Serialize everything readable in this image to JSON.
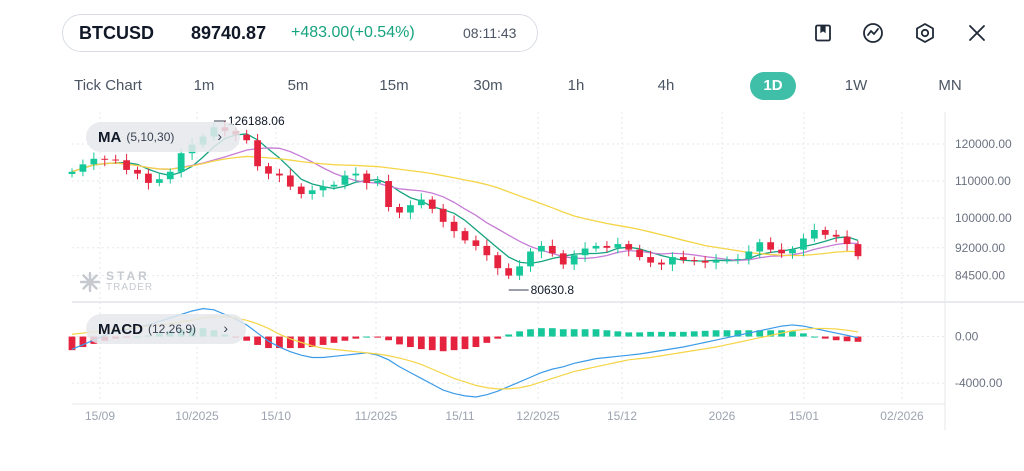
{
  "ticker": {
    "symbol": "BTCUSD",
    "price": "89740.87",
    "change": "+483.00(+0.54%)",
    "time": "08:11:43"
  },
  "icons": [
    "bookmark-icon",
    "indicator-icon",
    "settings-icon",
    "close-icon"
  ],
  "timeframes": [
    "Tick Chart",
    "1m",
    "5m",
    "15m",
    "30m",
    "1h",
    "4h",
    "1D",
    "1W",
    "MN"
  ],
  "active_timeframe": "1D",
  "indicators": {
    "ma": {
      "name": "MA",
      "params": "(5,10,30)"
    },
    "macd": {
      "name": "MACD",
      "params": "(12,26,9)"
    }
  },
  "watermark": {
    "line1": "STAR",
    "line2": "TRADER"
  },
  "colors": {
    "up": "#16c79a",
    "down": "#e5233f",
    "accent": "#3fbfa8",
    "ma5": "#16a37f",
    "ma10": "#c77dd6",
    "ma30": "#f5d547",
    "macd_line": "#3b9be8",
    "signal_line": "#f5d547"
  },
  "chart_data": [
    {
      "type": "candlestick",
      "title": "MA (5,10,30)",
      "y_ticks": [
        "120000.00",
        "110000.00",
        "100000.00",
        "92000.00",
        "84500.00"
      ],
      "x_ticks": [
        "15/09",
        "10/2025",
        "15/10",
        "11/2025",
        "15/11",
        "12/2025",
        "15/12",
        "2026",
        "15/01",
        "02/2026"
      ],
      "annotations": {
        "high": "126188.06",
        "low": "80630.8"
      },
      "series": [
        {
          "name": "BTCUSD",
          "values": [
            112500,
            114500,
            116000,
            115800,
            115600,
            113000,
            112000,
            109500,
            110500,
            112500,
            117500,
            119800,
            122000,
            124500,
            123500,
            122500,
            121000,
            114000,
            112000,
            111500,
            108500,
            106500,
            107500,
            108500,
            109000,
            111500,
            112000,
            109500,
            110000,
            103000,
            101500,
            103500,
            105000,
            102500,
            99000,
            96500,
            94000,
            92500,
            90000,
            86500,
            84500,
            87000,
            91000,
            92500,
            90500,
            87500,
            90000,
            91800,
            92500,
            92000,
            93000,
            91500,
            89500,
            88000,
            87500,
            89500,
            88700,
            88500,
            88000,
            88600,
            88800,
            89000,
            91000,
            93500,
            91500,
            90500,
            91500,
            94500,
            96800,
            95500,
            95000,
            93000,
            89740
          ]
        }
      ],
      "ma_periods": [
        5,
        10,
        30
      ]
    },
    {
      "type": "macd",
      "title": "MACD (12,26,9)",
      "y_ticks": [
        "0.00",
        "-4000.00"
      ],
      "series": [
        {
          "name": "MACD",
          "values": [
            -1100,
            -700,
            -300,
            100,
            400,
            600,
            800,
            1000,
            1300,
            1600,
            1900,
            2200,
            2400,
            2300,
            1900,
            1500,
            1000,
            300,
            -400,
            -900,
            -1300,
            -1600,
            -1800,
            -1800,
            -1700,
            -1600,
            -1500,
            -1400,
            -1600,
            -2000,
            -2600,
            -3100,
            -3600,
            -4100,
            -4600,
            -4900,
            -5100,
            -5200,
            -5000,
            -4700,
            -4300,
            -3900,
            -3500,
            -3100,
            -2800,
            -2600,
            -2300,
            -2100,
            -1900,
            -1800,
            -1700,
            -1600,
            -1500,
            -1350,
            -1200,
            -1050,
            -900,
            -700,
            -500,
            -300,
            -100,
            100,
            300,
            500,
            700,
            900,
            1000,
            900,
            700,
            500,
            300,
            100,
            -100
          ]
        },
        {
          "name": "Signal",
          "values": [
            200,
            300,
            400,
            500,
            600,
            700,
            800,
            900,
            1000,
            1100,
            1250,
            1400,
            1600,
            1700,
            1700,
            1600,
            1400,
            1100,
            700,
            200,
            -200,
            -500,
            -800,
            -1000,
            -1100,
            -1200,
            -1300,
            -1400,
            -1500,
            -1650,
            -1850,
            -2100,
            -2400,
            -2800,
            -3200,
            -3600,
            -3900,
            -4200,
            -4400,
            -4500,
            -4500,
            -4400,
            -4200,
            -3900,
            -3600,
            -3300,
            -3000,
            -2800,
            -2600,
            -2400,
            -2200,
            -2000,
            -1900,
            -1800,
            -1650,
            -1500,
            -1350,
            -1200,
            -1050,
            -900,
            -700,
            -500,
            -300,
            -100,
            100,
            300,
            500,
            600,
            700,
            700,
            650,
            550,
            400
          ]
        }
      ]
    }
  ]
}
